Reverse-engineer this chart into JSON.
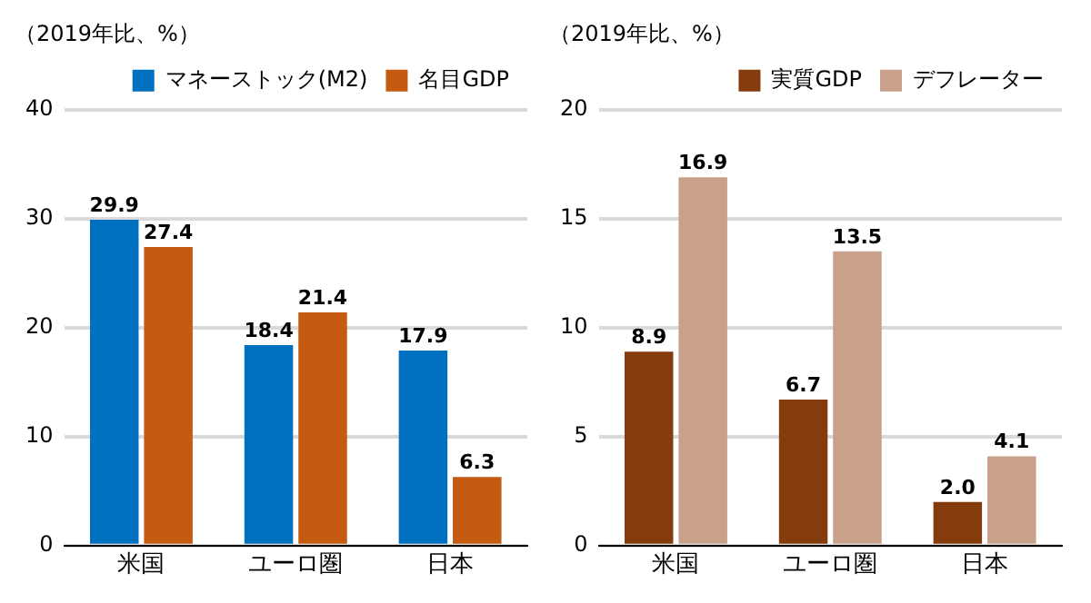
{
  "chart_data": [
    {
      "type": "bar",
      "ylabel": "（2019年比、%）",
      "categories": [
        "米国",
        "ユーロ圏",
        "日本"
      ],
      "series": [
        {
          "name": "マネーストック(M2)",
          "color": "#0070c0",
          "values": [
            29.9,
            18.4,
            17.9
          ]
        },
        {
          "name": "名目GDP",
          "color": "#c55a11",
          "values": [
            27.4,
            21.4,
            6.3
          ]
        }
      ],
      "ylim": [
        0,
        40
      ],
      "yticks": [
        0,
        10,
        20,
        30,
        40
      ],
      "grid": "y",
      "legend": "top right",
      "data_labels": true
    },
    {
      "type": "bar",
      "ylabel": "（2019年比、%）",
      "categories": [
        "米国",
        "ユーロ圏",
        "日本"
      ],
      "series": [
        {
          "name": "実質GDP",
          "color": "#843c0c",
          "values": [
            8.9,
            6.7,
            2.0
          ],
          "value_labels": [
            "8.9",
            "6.7",
            "2.0"
          ]
        },
        {
          "name": "デフレーター",
          "color": "#c9a08a",
          "values": [
            16.9,
            13.5,
            4.1
          ]
        }
      ],
      "ylim": [
        0,
        20
      ],
      "yticks": [
        0,
        5,
        10,
        15,
        20
      ],
      "grid": "y",
      "legend": "top right",
      "data_labels": true
    }
  ]
}
